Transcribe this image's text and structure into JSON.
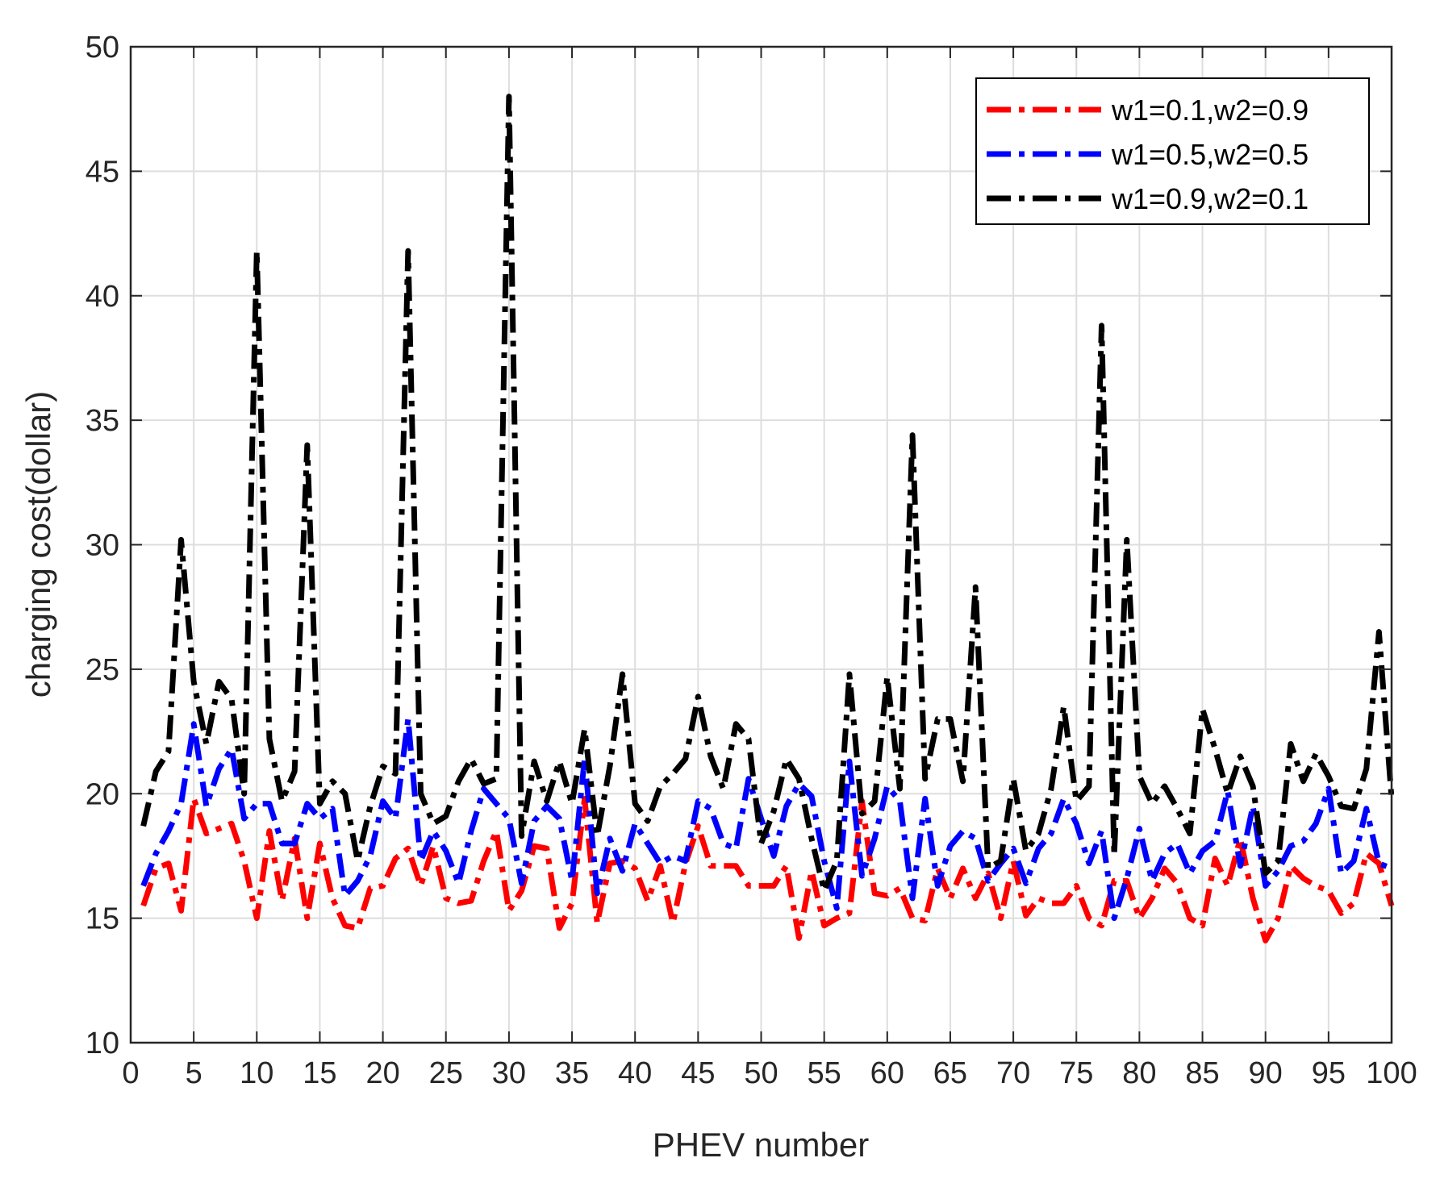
{
  "chart_data": {
    "type": "line",
    "title": "",
    "xlabel": "PHEV number",
    "ylabel": "charging cost(dollar)",
    "xlim": [
      0,
      100
    ],
    "ylim": [
      10,
      50
    ],
    "xticks": [
      0,
      5,
      10,
      15,
      20,
      25,
      30,
      35,
      40,
      45,
      50,
      55,
      60,
      65,
      70,
      75,
      80,
      85,
      90,
      95,
      100
    ],
    "yticks": [
      10,
      15,
      20,
      25,
      30,
      35,
      40,
      45,
      50
    ],
    "grid": true,
    "legend_position": "top-right",
    "x": [
      1,
      2,
      3,
      4,
      5,
      6,
      7,
      8,
      9,
      10,
      11,
      12,
      13,
      14,
      15,
      16,
      17,
      18,
      19,
      20,
      21,
      22,
      23,
      24,
      25,
      26,
      27,
      28,
      29,
      30,
      31,
      32,
      33,
      34,
      35,
      36,
      37,
      38,
      39,
      40,
      41,
      42,
      43,
      44,
      45,
      46,
      47,
      48,
      49,
      50,
      51,
      52,
      53,
      54,
      55,
      56,
      57,
      58,
      59,
      60,
      61,
      62,
      63,
      64,
      65,
      66,
      67,
      68,
      69,
      70,
      71,
      72,
      73,
      74,
      75,
      76,
      77,
      78,
      79,
      80,
      81,
      82,
      83,
      84,
      85,
      86,
      87,
      88,
      89,
      90,
      91,
      92,
      93,
      94,
      95,
      96,
      97,
      98,
      99,
      100
    ],
    "series": [
      {
        "name": "w1=0.1,w2=0.9",
        "color": "#ff0000",
        "values": [
          15.5,
          17,
          17.2,
          15.3,
          19.8,
          18.4,
          18.6,
          18.8,
          17.3,
          15,
          18.5,
          15.7,
          18.2,
          15,
          18,
          15.8,
          14.7,
          14.6,
          16.2,
          16.3,
          17.4,
          17.8,
          16.3,
          17.9,
          15.8,
          15.6,
          15.7,
          17.3,
          18.5,
          15.3,
          16.1,
          17.9,
          17.8,
          14.6,
          15.6,
          19.8,
          14.8,
          17.2,
          17.3,
          17,
          15.7,
          17.1,
          14.8,
          17.2,
          18.7,
          17.1,
          17.1,
          17.1,
          16.3,
          16.3,
          16.3,
          17.1,
          14.2,
          16.9,
          14.7,
          15,
          15.2,
          19.7,
          16,
          15.9,
          16.2,
          15,
          14.9,
          17,
          15.8,
          17,
          15.8,
          16.8,
          15,
          17.3,
          15.1,
          15.8,
          15.6,
          15.6,
          16.3,
          15,
          14.7,
          16.5,
          16.5,
          15,
          15.8,
          17,
          16.4,
          15,
          14.7,
          17.4,
          16.3,
          18.2,
          15.8,
          14.1,
          15,
          17.1,
          16.6,
          16.3,
          16.1,
          15.2,
          15.6,
          17.6,
          17.2,
          15.5
        ]
      },
      {
        "name": "w1=0.5,w2=0.5",
        "color": "#0000ff",
        "values": [
          16.3,
          17.6,
          18.5,
          19.6,
          22.8,
          19.5,
          21,
          21.8,
          19,
          19.6,
          19.6,
          18,
          18,
          19.6,
          19,
          19.4,
          15.9,
          16.5,
          17.5,
          19.7,
          19,
          23,
          17.3,
          18.5,
          17.7,
          16.4,
          18.5,
          20.2,
          19.6,
          19,
          16.4,
          18.9,
          19.5,
          19,
          16.5,
          21.4,
          16,
          18.2,
          16.9,
          18.8,
          18,
          17.2,
          17.5,
          17.3,
          19.7,
          19.4,
          18,
          17.8,
          20.6,
          19,
          17.5,
          19.5,
          20.4,
          19.9,
          17.3,
          15.4,
          21.3,
          16.7,
          18.2,
          20.3,
          19.7,
          15.8,
          19.8,
          16.3,
          17.9,
          18.5,
          18.2,
          16.5,
          17.2,
          17.8,
          16.4,
          17.8,
          18.4,
          19.8,
          18.8,
          17.2,
          18.5,
          15,
          16.6,
          18.6,
          16.5,
          17.6,
          18,
          16.8,
          17.7,
          18.1,
          20.1,
          17.1,
          19.5,
          16.3,
          16.9,
          17.9,
          18.1,
          18.8,
          20.2,
          16.8,
          17.3,
          19.4,
          17.2,
          17
        ]
      },
      {
        "name": "w1=0.9,w2=0.1",
        "color": "#000000",
        "values": [
          18.7,
          20.9,
          21.7,
          30.2,
          24.5,
          22,
          24.5,
          23.8,
          20,
          41.8,
          22.2,
          19.7,
          20.9,
          34,
          19.6,
          20.5,
          20,
          17.3,
          19.5,
          21.1,
          20.8,
          41.8,
          20,
          18.8,
          19.1,
          20.5,
          21.4,
          20.4,
          20.6,
          48,
          18.3,
          21.3,
          19.7,
          21.3,
          19.6,
          22.6,
          18.3,
          21.1,
          24.8,
          19.6,
          18.9,
          20.3,
          20.8,
          21.4,
          23.9,
          21.5,
          20.2,
          22.8,
          22.2,
          18,
          19.3,
          21.4,
          20.6,
          18.2,
          16.1,
          17.3,
          24.8,
          19.2,
          19.7,
          24.7,
          20.2,
          34.4,
          20.6,
          23,
          23,
          20.5,
          28.3,
          17,
          17.3,
          20.6,
          17.7,
          18.4,
          20.2,
          23.5,
          19.7,
          20.3,
          38.8,
          17.5,
          30.2,
          20.7,
          19.6,
          20.3,
          19.4,
          18.4,
          23.4,
          21.8,
          20,
          21.5,
          20.3,
          16.8,
          17.3,
          22,
          20.5,
          21.6,
          20.7,
          19.5,
          19.4,
          21,
          26.5,
          19.8
        ]
      }
    ]
  }
}
